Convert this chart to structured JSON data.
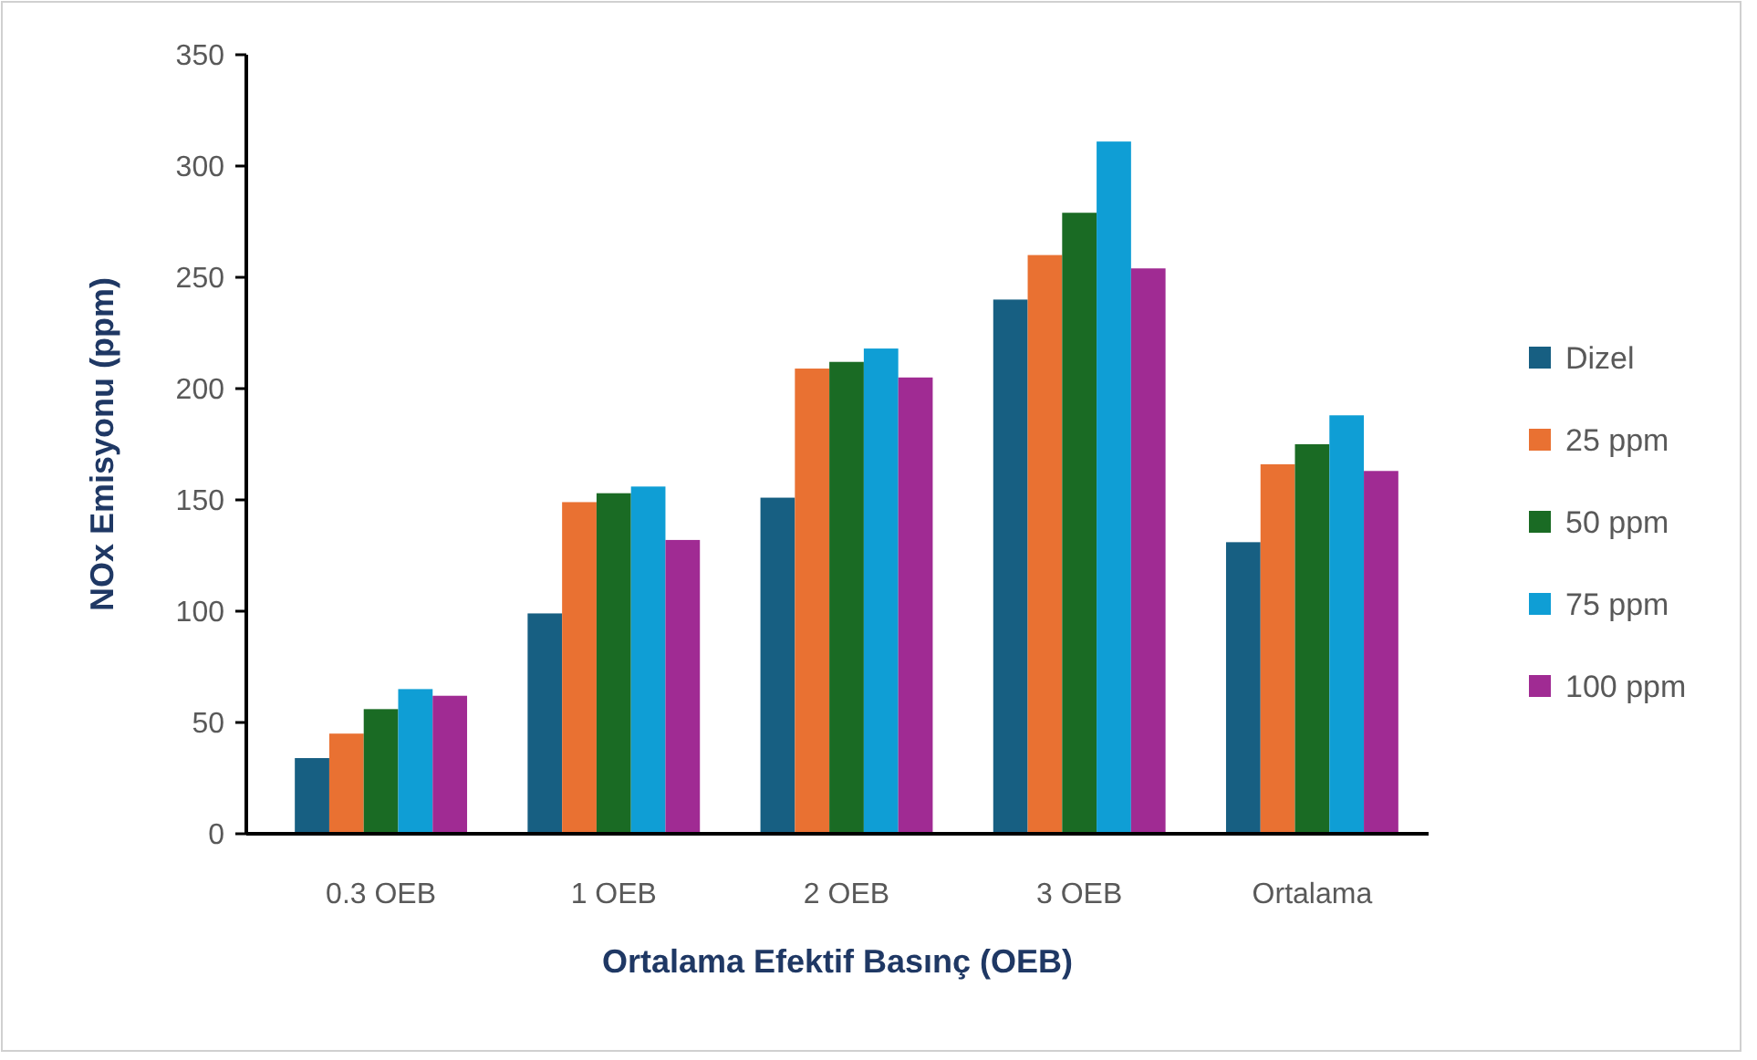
{
  "chart_data": {
    "type": "bar",
    "xlabel": "Ortalama Efektif Basınç (OEB)",
    "ylabel": "NOx Emisyonu (ppm)",
    "categories": [
      "0.3 OEB",
      "1 OEB",
      "2 OEB",
      "3 OEB",
      "Ortalama"
    ],
    "series": [
      {
        "name": "Dizel",
        "color": "#175f82",
        "values": [
          34,
          99,
          151,
          240,
          131
        ]
      },
      {
        "name": "25 ppm",
        "color": "#e97132",
        "values": [
          45,
          149,
          209,
          260,
          166
        ]
      },
      {
        "name": "50 ppm",
        "color": "#1a6b24",
        "values": [
          56,
          153,
          212,
          279,
          175
        ]
      },
      {
        "name": "75 ppm",
        "color": "#0f9ed5",
        "values": [
          65,
          156,
          218,
          311,
          188
        ]
      },
      {
        "name": "100 ppm",
        "color": "#a02b93",
        "values": [
          62,
          132,
          205,
          254,
          163
        ]
      }
    ],
    "ylim": [
      0,
      350
    ],
    "yticks": [
      0,
      50,
      100,
      150,
      200,
      250,
      300,
      350
    ],
    "grid": false,
    "legend": "right"
  }
}
